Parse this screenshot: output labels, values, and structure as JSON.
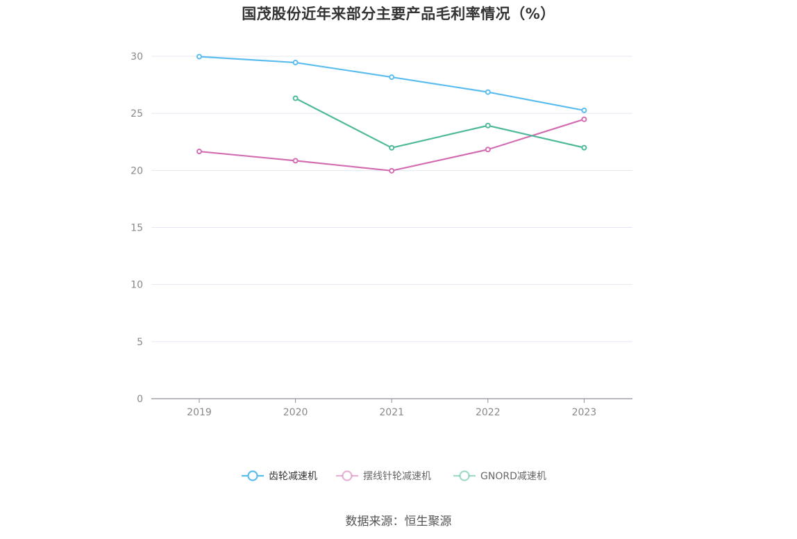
{
  "chart_data": {
    "type": "line",
    "title": "国茂股份近年来部分主要产品毛利率情况（%）",
    "categories": [
      "2019",
      "2020",
      "2021",
      "2022",
      "2023"
    ],
    "ylim": [
      0,
      30
    ],
    "yticks": [
      "0",
      "5",
      "10",
      "15",
      "20",
      "25",
      "30"
    ],
    "grid": true,
    "legend_position": "bottom",
    "series": [
      {
        "name": "齿轮减速机",
        "color": "#5bbcee",
        "values": [
          29.97,
          29.45,
          28.17,
          26.86,
          25.26
        ]
      },
      {
        "name": "摆线针轮减速机",
        "color": "#d36db2",
        "values": [
          21.66,
          20.85,
          19.97,
          21.83,
          24.48
        ]
      },
      {
        "name": "GNORD减速机",
        "color": "#4fb99a",
        "values": [
          null,
          26.32,
          21.98,
          23.93,
          21.99
        ]
      }
    ]
  },
  "source": "数据来源：恒生聚源"
}
